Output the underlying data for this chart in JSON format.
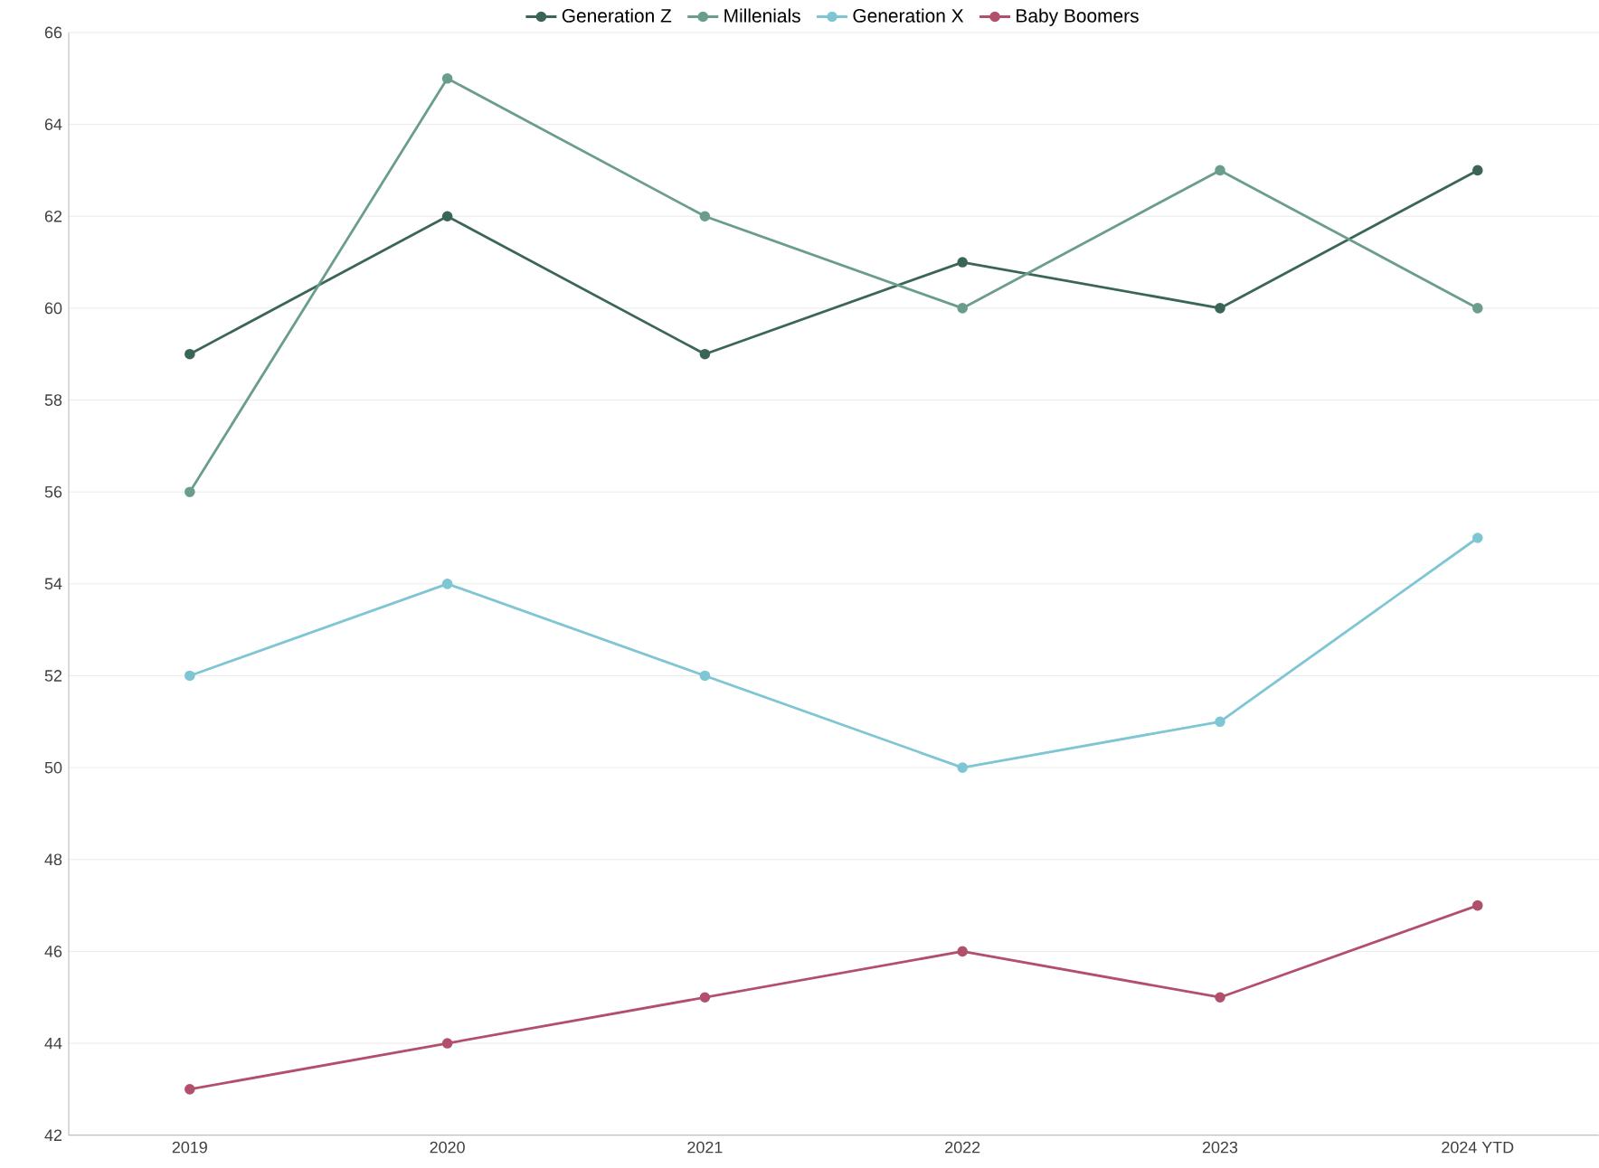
{
  "chart_data": {
    "type": "line",
    "categories": [
      "2019",
      "2020",
      "2021",
      "2022",
      "2023",
      "2024 YTD"
    ],
    "series": [
      {
        "name": "Generation Z",
        "color": "#3b6656",
        "values": [
          59,
          62,
          59,
          61,
          60,
          63
        ]
      },
      {
        "name": "Millenials",
        "color": "#6b9e8a",
        "values": [
          56,
          65,
          62,
          60,
          63,
          60
        ]
      },
      {
        "name": "Generation X",
        "color": "#7ec6d3",
        "values": [
          52,
          54,
          52,
          50,
          51,
          55
        ]
      },
      {
        "name": "Baby Boomers",
        "color": "#b24f6c",
        "values": [
          43,
          44,
          45,
          46,
          45,
          47
        ]
      }
    ],
    "ylim": [
      42,
      66
    ],
    "yticks": [
      42,
      44,
      46,
      48,
      50,
      52,
      54,
      56,
      58,
      60,
      62,
      64,
      66
    ],
    "grid": "y",
    "legend": "top",
    "marker": "circle",
    "line_style": "solid"
  }
}
